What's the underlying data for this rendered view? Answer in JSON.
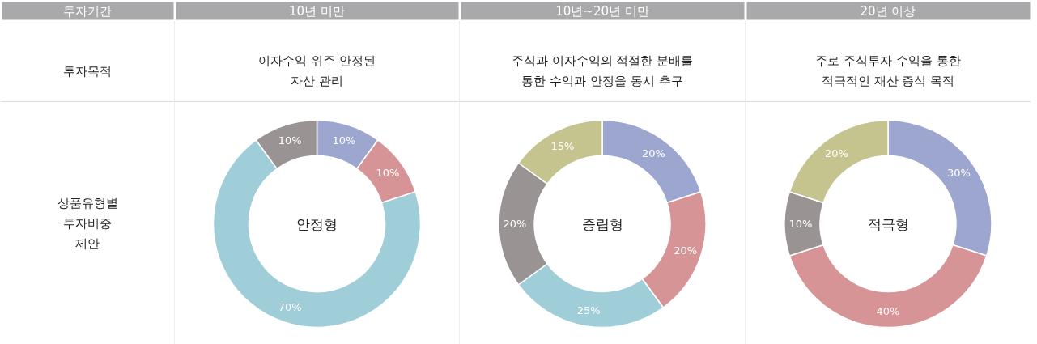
{
  "chart_data": [
    {
      "type": "other",
      "title": "투자기간",
      "annotations": [
        "투자목적",
        "상품유형별\n투자비중\n제안"
      ]
    },
    {
      "type": "donut",
      "title": "10년 미만",
      "subtitle": "이자수익 위주 안정된\n자산 관리",
      "categories": [
        null,
        null,
        null,
        null
      ],
      "values": [
        10,
        10,
        70,
        10
      ],
      "value_labels": [
        "10%",
        "10%",
        "70%",
        "10%"
      ],
      "colors": [
        "#9da6cf",
        "#d69497",
        "#9fcdd8",
        "#9a9394"
      ],
      "annotations": [
        "안정형"
      ]
    },
    {
      "type": "donut",
      "title": "10년~20년 미만",
      "subtitle": "주식과 이자수익의 적절한 분배를\n통한 수익과 안정을 동시 추구",
      "categories": [
        null,
        null,
        null,
        null,
        null
      ],
      "values": [
        20,
        20,
        25,
        20,
        15
      ],
      "value_labels": [
        "20%",
        "20%",
        "25%",
        "20%",
        "15%"
      ],
      "colors": [
        "#9da6cf",
        "#d69497",
        "#9fcdd8",
        "#9a9394",
        "#c5c48f"
      ],
      "annotations": [
        "중립형"
      ]
    },
    {
      "type": "donut",
      "title": "20년 이상",
      "subtitle": "주로 주식투자 수익을 통한\n적극적인 재산 증식 목적",
      "categories": [
        null,
        null,
        null,
        null
      ],
      "values": [
        30,
        40,
        10,
        20
      ],
      "value_labels": [
        "30%",
        "40%",
        "10%",
        "20%"
      ],
      "colors": [
        "#9da6cf",
        "#d69497",
        "#9a9394",
        "#c5c48f"
      ],
      "annotations": [
        "적극형"
      ]
    }
  ]
}
